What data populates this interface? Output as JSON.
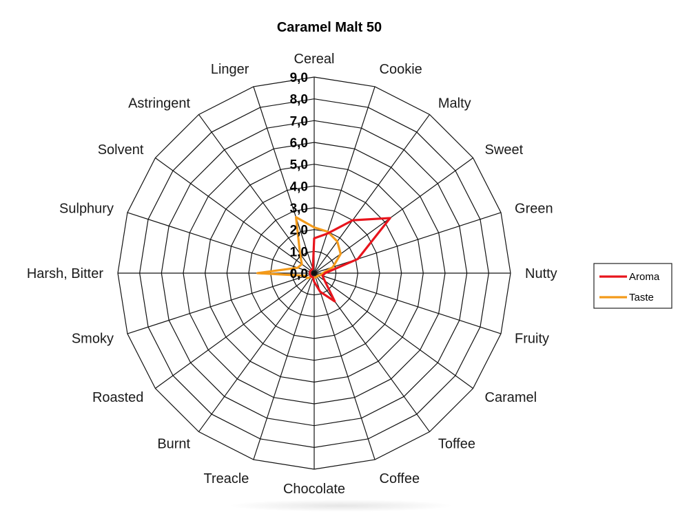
{
  "chart_data": {
    "type": "radar",
    "title": "Caramel Malt 50",
    "categories": [
      "Cereal",
      "Cookie",
      "Malty",
      "Sweet",
      "Green",
      "Nutty",
      "Fruity",
      "Caramel",
      "Toffee",
      "Coffee",
      "Chocolate",
      "Treacle",
      "Burnt",
      "Roasted",
      "Smoky",
      "Harsh, Bitter",
      "Sulphury",
      "Solvent",
      "Astringent",
      "Linger"
    ],
    "tick_values": [
      0,
      1,
      2,
      3,
      4,
      5,
      6,
      7,
      8,
      9
    ],
    "tick_labels": [
      "0,0",
      "1,0",
      "2,0",
      "3,0",
      "4,0",
      "5,0",
      "6,0",
      "7,0",
      "8,0",
      "9,0"
    ],
    "rlim": [
      0,
      9
    ],
    "grid": true,
    "legend_position": "right",
    "series": [
      {
        "name": "Aroma",
        "color": "#e8141c",
        "values": [
          1.6,
          1.9,
          3.0,
          4.3,
          2.1,
          0.5,
          0.4,
          0.6,
          1.6,
          0.9,
          0.4,
          0.2,
          0.2,
          0.2,
          0.2,
          0.2,
          0.2,
          0.2,
          0.2,
          0.2
        ]
      },
      {
        "name": "Taste",
        "color": "#f39a1a",
        "values": [
          2.1,
          2.0,
          1.8,
          1.5,
          0.9,
          0.4,
          0.3,
          0.2,
          0.2,
          0.2,
          0.2,
          0.2,
          0.2,
          0.4,
          0.4,
          2.6,
          0.8,
          0.7,
          1.1,
          2.7
        ]
      }
    ]
  }
}
